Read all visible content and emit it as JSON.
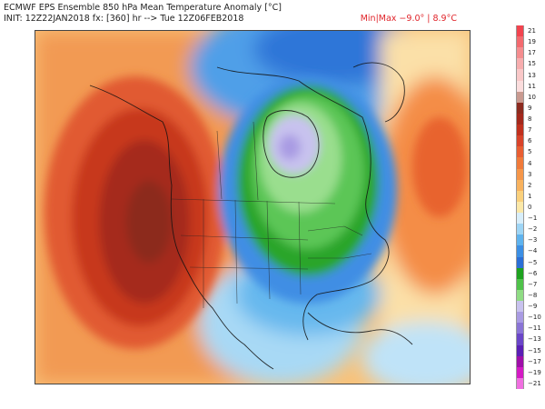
{
  "header": {
    "title": "ECMWF EPS Ensemble 850 hPa Mean Temperature Anomaly [°C]",
    "init": "INIT: 12Z22JAN2018 fx: [360] hr --> Tue 12Z06FEB2018",
    "minmax": "Min|Max −9.0° | 8.9°C"
  },
  "colorbar": {
    "unit": "°C",
    "levels": [
      {
        "label": "21",
        "color": "#f2444f"
      },
      {
        "label": "19",
        "color": "#f36a6f"
      },
      {
        "label": "17",
        "color": "#f58d8f"
      },
      {
        "label": "15",
        "color": "#f7adae"
      },
      {
        "label": "13",
        "color": "#f9c8c8"
      },
      {
        "label": "11",
        "color": "#fbdddd"
      },
      {
        "label": "10",
        "color": "#c99a90"
      },
      {
        "label": "9",
        "color": "#8c2b1f"
      },
      {
        "label": "8",
        "color": "#a3281c"
      },
      {
        "label": "7",
        "color": "#c0301e"
      },
      {
        "label": "6",
        "color": "#d8432a"
      },
      {
        "label": "5",
        "color": "#e85e32"
      },
      {
        "label": "4",
        "color": "#f07a3a"
      },
      {
        "label": "3",
        "color": "#f59649"
      },
      {
        "label": "2",
        "color": "#f8b25e"
      },
      {
        "label": "1",
        "color": "#fad07c"
      },
      {
        "label": "0",
        "color": "#fbe8a8"
      },
      {
        "label": "−1",
        "color": "#d8eefa"
      },
      {
        "label": "−2",
        "color": "#9ed5f5"
      },
      {
        "label": "−3",
        "color": "#5fb3ee"
      },
      {
        "label": "−4",
        "color": "#3c8fe4"
      },
      {
        "label": "−5",
        "color": "#2b6fd6"
      },
      {
        "label": "−6",
        "color": "#1ea21f"
      },
      {
        "label": "−7",
        "color": "#4fc24a"
      },
      {
        "label": "−8",
        "color": "#8fdc84"
      },
      {
        "label": "−9",
        "color": "#c8c2ee"
      },
      {
        "label": "−10",
        "color": "#a99be3"
      },
      {
        "label": "−11",
        "color": "#8a74d6"
      },
      {
        "label": "−13",
        "color": "#6a46c8"
      },
      {
        "label": "−15",
        "color": "#5a1fb5"
      },
      {
        "label": "−17",
        "color": "#9e0fa8"
      },
      {
        "label": "−19",
        "color": "#d41ac4"
      },
      {
        "label": "−21",
        "color": "#f06fe0"
      }
    ]
  },
  "map": {
    "region": "North America",
    "anomaly_features": [
      {
        "name": "Warm anomaly",
        "area": "Northeast Pacific / West Coast",
        "peak_color": "#8c2b1f"
      },
      {
        "name": "Warm anomaly",
        "area": "Western North Atlantic",
        "peak_color": "#e85e32"
      },
      {
        "name": "Cold anomaly",
        "area": "Hudson Bay / Central Canada",
        "peak_color": "#c8c2ee"
      },
      {
        "name": "Cold anomaly",
        "area": "Arctic Canada",
        "peak_color": "#2b6fd6"
      }
    ]
  }
}
